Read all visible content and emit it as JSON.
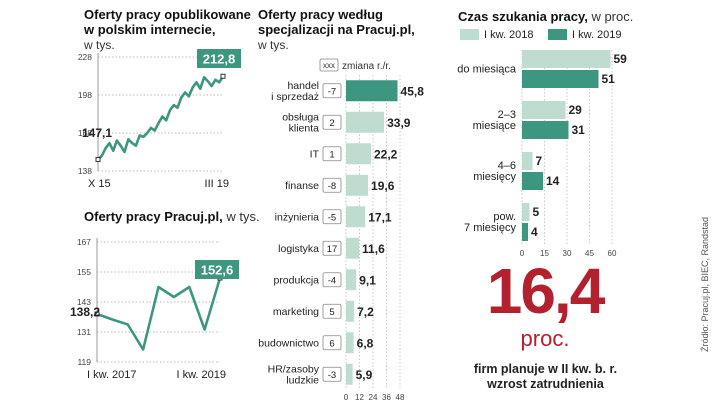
{
  "panel1": {
    "title_line1": "Oferty pracy opublikowane",
    "title_line2": "w polskim internecie,",
    "unit": "w tys."
  },
  "panel2": {
    "title": "Oferty pracy Pracuj.pl,",
    "unit": "w tys."
  },
  "panel3": {
    "title_line1": "Oferty pracy według",
    "title_line2": "specjalizacji na Pracuj.pl,",
    "unit": "w tys."
  },
  "panel4": {
    "title": "Czas szukania pracy,",
    "unit": "w proc."
  },
  "highlight": {
    "value": "16,4",
    "unit": "proc.",
    "caption_line1": "firm planuje w II kw. b. r.",
    "caption_line2": "wzrost zatrudnienia"
  },
  "source": "Źródło: Pracuj.pl, BIEC, Randstad",
  "colors": {
    "teal": "#3d9680",
    "light_teal": "#bfdcd1",
    "red": "#b3202e",
    "grid": "#bbbbbb"
  },
  "chart_data": [
    {
      "type": "line",
      "id": "internet-offers",
      "x_start_label": "X 15",
      "x_end_label": "III 19",
      "ylim": [
        138,
        228
      ],
      "yticks": [
        138,
        168,
        198,
        228
      ],
      "values": [
        147.1,
        150,
        156,
        160,
        154,
        162,
        158,
        153,
        163,
        160,
        158,
        166,
        165,
        168,
        172,
        170,
        176,
        181,
        178,
        186,
        190,
        188,
        196,
        200,
        197,
        204,
        208,
        203,
        212,
        209,
        205,
        210,
        208,
        212.8
      ],
      "start_label": "147,1",
      "end_label": "212,8"
    },
    {
      "type": "line",
      "id": "pracuj-offers",
      "x_start_label": "I kw. 2017",
      "x_end_label": "I kw. 2019",
      "ylim": [
        119,
        167
      ],
      "yticks": [
        119,
        131,
        143,
        155,
        167
      ],
      "values": [
        138.2,
        136,
        134,
        124,
        149,
        145,
        149,
        132,
        152.6
      ],
      "start_label": "138,2",
      "end_label": "152,6"
    },
    {
      "type": "bar",
      "id": "specializations",
      "legend_box": "xxx",
      "legend_label": "zmiana r./r.",
      "categories": [
        "handel i sprzedaż",
        "obsługa klienta",
        "IT",
        "finanse",
        "inżynieria",
        "logistyka",
        "produkcja",
        "marketing",
        "budownictwo",
        "HR/zasoby ludzkie"
      ],
      "label_lines": [
        [
          "handel",
          "i sprzedaż"
        ],
        [
          "obsługa",
          "klienta"
        ],
        [
          "IT"
        ],
        [
          "finanse"
        ],
        [
          "inżynieria"
        ],
        [
          "logistyka"
        ],
        [
          "produkcja"
        ],
        [
          "marketing"
        ],
        [
          "budownictwo"
        ],
        [
          "HR/zasoby",
          "ludzkie"
        ]
      ],
      "values": [
        45.8,
        33.9,
        22.2,
        19.6,
        17.1,
        11.6,
        9.1,
        7.2,
        6.8,
        5.9
      ],
      "value_labels": [
        "45,8",
        "33,9",
        "22,2",
        "19,6",
        "17,1",
        "11,6",
        "9,1",
        "7,2",
        "6,8",
        "5,9"
      ],
      "changes": [
        "-7",
        "2",
        "1",
        "-8",
        "-5",
        "17",
        "-4",
        "5",
        "6",
        "-3"
      ],
      "xlim": [
        0,
        48
      ],
      "xticks": [
        0,
        12,
        24,
        36,
        48
      ]
    },
    {
      "type": "bar",
      "id": "search-time",
      "categories": [
        "do miesiąca",
        "2–3 miesiące",
        "4–6 miesięcy",
        "pow. 7 miesięcy"
      ],
      "label_lines": [
        [
          "do miesiąca"
        ],
        [
          "2–3",
          "miesiące"
        ],
        [
          "4–6",
          "miesięcy"
        ],
        [
          "pow.",
          "7 miesięcy"
        ]
      ],
      "series": [
        {
          "name": "I kw. 2018",
          "values": [
            59,
            29,
            7,
            5
          ]
        },
        {
          "name": "I kw. 2019",
          "values": [
            51,
            31,
            14,
            4
          ]
        }
      ],
      "xlim": [
        0,
        60
      ],
      "xticks": [
        0,
        15,
        30,
        45,
        60
      ]
    }
  ]
}
